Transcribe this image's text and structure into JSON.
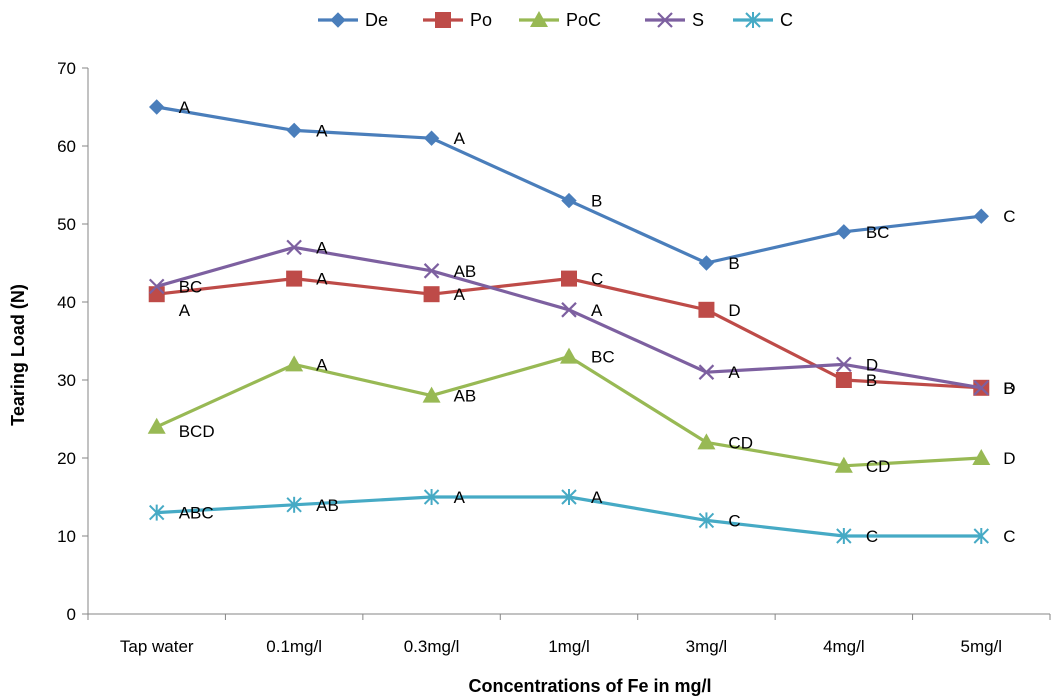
{
  "chart_data": {
    "type": "line",
    "title": "",
    "xlabel": "Concentrations of Fe in mg/l",
    "ylabel": "Tearing Load (N)",
    "ylim": [
      0,
      70
    ],
    "yticks": [
      0,
      10,
      20,
      30,
      40,
      50,
      60,
      70
    ],
    "grid": false,
    "legend_position": "top",
    "categories": [
      "Tap water",
      "0.1mg/l",
      "0.3mg/l",
      "1mg/l",
      "3mg/l",
      "4mg/l",
      "5mg/l"
    ],
    "series": [
      {
        "name": "De",
        "color": "#4a7ebb",
        "marker": "diamond",
        "values": [
          65,
          62,
          61,
          53,
          45,
          49,
          51
        ],
        "labels": [
          "A",
          "A",
          "A",
          "B",
          "B",
          "BC",
          "C"
        ]
      },
      {
        "name": "Po",
        "color": "#be4b48",
        "marker": "square",
        "values": [
          41,
          43,
          41,
          43,
          39,
          30,
          29
        ],
        "labels": [
          "A",
          "A",
          "A",
          "C",
          "D",
          "B",
          "B"
        ]
      },
      {
        "name": "PoC",
        "color": "#98b954",
        "marker": "triangle",
        "values": [
          24,
          32,
          28,
          33,
          22,
          19,
          20
        ],
        "labels": [
          "BCD",
          "A",
          "AB",
          "BC",
          "CD",
          "CD",
          "D"
        ]
      },
      {
        "name": "S",
        "color": "#7d60a0",
        "marker": "x",
        "values": [
          42,
          47,
          44,
          39,
          31,
          32,
          29
        ],
        "labels": [
          "BC",
          "A",
          "AB",
          "A",
          "A",
          "D",
          "D"
        ]
      },
      {
        "name": "C",
        "color": "#46aac5",
        "marker": "star",
        "values": [
          13,
          14,
          15,
          15,
          12,
          10,
          10
        ],
        "labels": [
          "ABC",
          "AB",
          "A",
          "A",
          "C",
          "C",
          "C"
        ]
      }
    ]
  }
}
